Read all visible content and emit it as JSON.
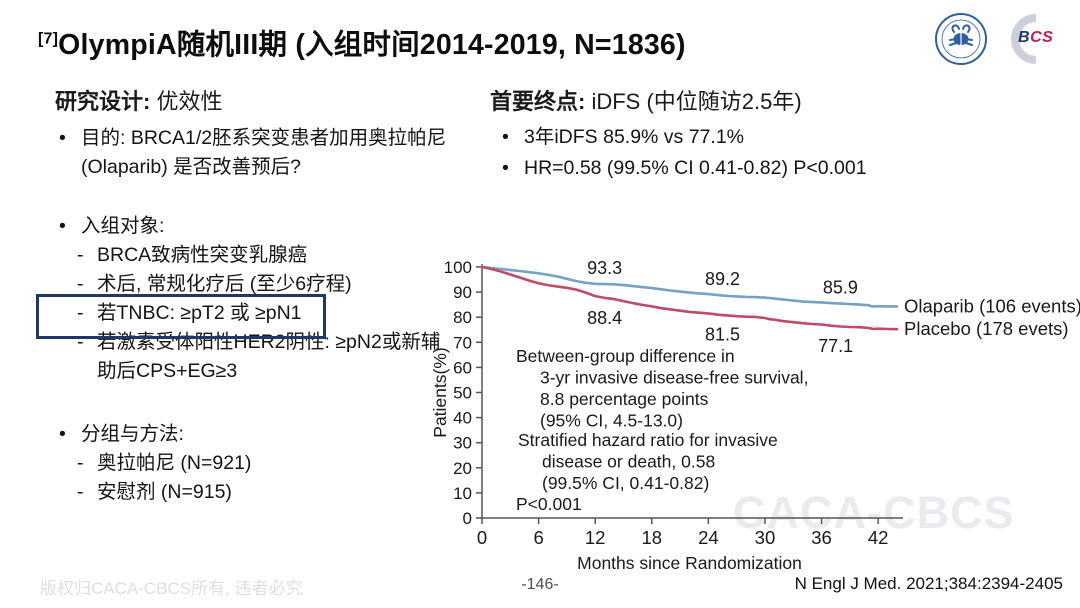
{
  "title": {
    "sup": "[7]",
    "text": "OlympiA随机III期 (入组时间2014-2019, N=1836)"
  },
  "logos": {
    "bcs_b": "B",
    "bcs_c": "C",
    "bcs_s": "S"
  },
  "colors": {
    "accent_box": "#1f3864",
    "olaparib_line": "#74a2c7",
    "placebo_line": "#c14a67",
    "bcs_b": "#1f3a6e",
    "bcs_cs": "#c2175b",
    "caca_blue": "#2e5fa3"
  },
  "left": {
    "heading_bold": "研究设计:",
    "heading_rest": " 优效性",
    "purpose_label": "目的: BRCA1/2胚系突变患者加用奥拉帕尼 (Olaparib) 是否改善预后?",
    "enroll": {
      "label": "入组对象:",
      "items": [
        "BRCA致病性突变乳腺癌",
        "术后, 常规化疗后 (至少6疗程)",
        "若TNBC: ≥pT2 或 ≥pN1",
        "若激素受体阳性HER2阴性: ≥pN2或新辅助后CPS+EG≥3"
      ]
    },
    "methods": {
      "label": "分组与方法:",
      "items": [
        "奥拉帕尼 (N=921)",
        "安慰剂 (N=915)"
      ]
    }
  },
  "right": {
    "heading_bold": "首要终点:",
    "heading_rest": " iDFS (中位随访2.5年)",
    "bullets": [
      "3年iDFS 85.9% vs 77.1%",
      "HR=0.58 (99.5% CI 0.41-0.82) P<0.001"
    ]
  },
  "chart_data": {
    "type": "line",
    "title": "",
    "xlabel": "Months since Randomization",
    "ylabel": "Patients(%)",
    "xlim": [
      0,
      44
    ],
    "ylim": [
      0,
      100
    ],
    "x_ticks": [
      0,
      6,
      12,
      18,
      24,
      30,
      36,
      42
    ],
    "y_ticks": [
      0,
      10,
      20,
      30,
      40,
      50,
      60,
      70,
      80,
      90,
      100
    ],
    "grid": false,
    "legend_position": "line-end",
    "series": [
      {
        "name": "Olaparib (106 events)",
        "color": "#74a2c7",
        "x": [
          0,
          2,
          4,
          6,
          7,
          8,
          9,
          10,
          11,
          12,
          13,
          14,
          15,
          16,
          17,
          18,
          19,
          20,
          21,
          22,
          23,
          24,
          25,
          26,
          27,
          28,
          29,
          30,
          31,
          32,
          33,
          34,
          35,
          36,
          37,
          38,
          39,
          40,
          40.5,
          41,
          41.3,
          42,
          43,
          44
        ],
        "y": [
          100,
          99.2,
          98.4,
          97.5,
          96.9,
          96.2,
          95.3,
          94.4,
          93.7,
          93.3,
          93.2,
          93.1,
          92.8,
          92.4,
          92,
          91.6,
          91.1,
          90.6,
          90.2,
          89.8,
          89.5,
          89.2,
          88.8,
          88.5,
          88.3,
          88.1,
          88,
          87.8,
          87.4,
          87,
          86.6,
          86.2,
          86,
          85.9,
          85.6,
          85.4,
          85.2,
          85,
          84.9,
          84.8,
          84.3,
          84.4,
          84.3,
          84.3
        ]
      },
      {
        "name": "Placebo (178 evets)",
        "color": "#c14a67",
        "x": [
          0,
          1,
          2,
          3,
          4,
          5,
          6,
          7,
          8,
          9,
          10,
          11,
          12,
          13,
          14,
          15,
          16,
          17,
          18,
          19,
          20,
          21,
          22,
          23,
          24,
          25,
          26,
          27,
          28,
          29,
          30,
          30.5,
          31,
          31.5,
          32,
          33,
          34,
          35,
          36,
          37,
          38,
          39,
          40,
          41,
          41.5,
          42,
          43,
          44
        ],
        "y": [
          100,
          99.2,
          98.2,
          97,
          95.8,
          94.6,
          93.5,
          92.8,
          92.2,
          91.7,
          91,
          89.8,
          88.4,
          87.7,
          87.2,
          86.4,
          85.6,
          84.9,
          84.3,
          83.6,
          83.1,
          82.6,
          82.1,
          81.8,
          81.5,
          81,
          80.7,
          80.4,
          80.2,
          80.1,
          79.7,
          79.2,
          79,
          78.7,
          78.4,
          78,
          77.6,
          77.3,
          77.1,
          76.6,
          76.3,
          76.1,
          76,
          75.7,
          75.3,
          75.4,
          75.3,
          75.2
        ]
      }
    ],
    "point_labels": [
      {
        "text": "93.3",
        "series": 0,
        "month": 13,
        "value": 93.2,
        "placement": "above"
      },
      {
        "text": "89.2",
        "series": 0,
        "month": 25.5,
        "value": 88.8,
        "placement": "above"
      },
      {
        "text": "85.9",
        "series": 0,
        "month": 38,
        "value": 85.4,
        "placement": "above"
      },
      {
        "text": "88.4",
        "series": 1,
        "month": 13,
        "value": 87.7,
        "placement": "below"
      },
      {
        "text": "81.5",
        "series": 1,
        "month": 25.5,
        "value": 81.0,
        "placement": "below"
      },
      {
        "text": "77.1",
        "series": 1,
        "month": 37.5,
        "value": 76.5,
        "placement": "below"
      }
    ],
    "annotations": [
      {
        "lines": [
          "Between-group difference in",
          "3-yr invasive disease-free survival,",
          "8.8 percentage points",
          "(95% CI, 4.5-13.0)"
        ],
        "x": 86,
        "y": 112,
        "indent": 24
      },
      {
        "lines": [
          "Stratified hazard ratio for invasive",
          "disease or death, 0.58",
          "(99.5% CI, 0.41-0.82)"
        ],
        "x": 88,
        "y": 196,
        "indent": 24
      },
      {
        "lines": [
          "P<0.001"
        ],
        "x": 86,
        "y": 260,
        "indent": 0
      }
    ]
  },
  "watermark": "CACA-CBCS",
  "footer": {
    "left": "版权归CACA-CBCS所有, 违者必究",
    "center": "-146-",
    "right": "N Engl J Med. 2021;384:2394-2405"
  }
}
